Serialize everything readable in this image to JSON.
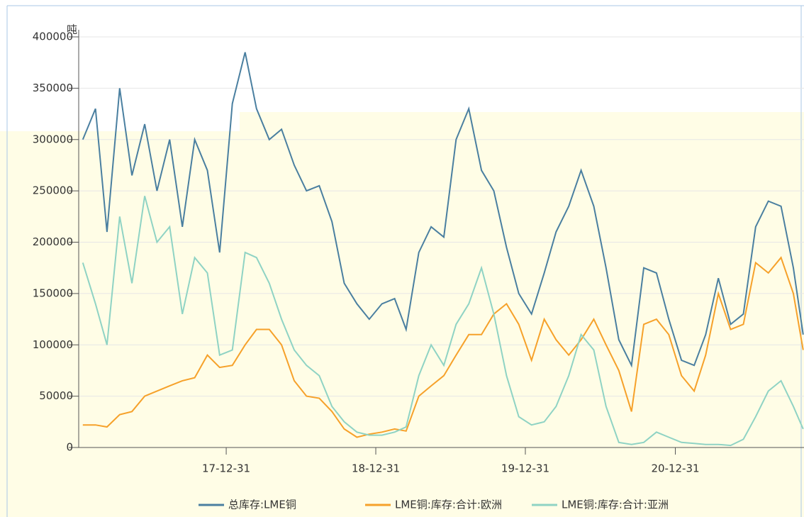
{
  "chart_data": {
    "type": "line",
    "y_unit": "吨",
    "x": [
      "2017-01-15",
      "2017-02-15",
      "2017-03-15",
      "2017-04-15",
      "2017-05-15",
      "2017-06-15",
      "2017-07-15",
      "2017-08-15",
      "2017-09-15",
      "2017-10-15",
      "2017-11-15",
      "2017-12-15",
      "2018-01-15",
      "2018-02-15",
      "2018-03-15",
      "2018-04-15",
      "2018-05-15",
      "2018-06-15",
      "2018-07-15",
      "2018-08-15",
      "2018-09-15",
      "2018-10-15",
      "2018-11-15",
      "2018-12-15",
      "2019-01-15",
      "2019-02-15",
      "2019-03-15",
      "2019-04-15",
      "2019-05-15",
      "2019-06-15",
      "2019-07-15",
      "2019-08-15",
      "2019-09-15",
      "2019-10-15",
      "2019-11-15",
      "2019-12-15",
      "2020-01-15",
      "2020-02-15",
      "2020-03-15",
      "2020-04-15",
      "2020-05-15",
      "2020-06-15",
      "2020-07-15",
      "2020-08-15",
      "2020-09-15",
      "2020-10-15",
      "2020-11-15",
      "2020-12-15",
      "2021-01-15",
      "2021-02-15",
      "2021-03-15",
      "2021-04-15",
      "2021-05-15",
      "2021-06-15",
      "2021-07-15",
      "2021-08-15",
      "2021-09-15",
      "2021-10-15",
      "2021-11-08"
    ],
    "series": [
      {
        "name": "总库存:LME铜",
        "color": "#4a7fa0",
        "values": [
          300000,
          330000,
          210000,
          350000,
          265000,
          315000,
          250000,
          300000,
          215000,
          300000,
          270000,
          190000,
          335000,
          385000,
          330000,
          300000,
          310000,
          275000,
          250000,
          255000,
          220000,
          160000,
          140000,
          125000,
          140000,
          145000,
          115000,
          190000,
          215000,
          205000,
          300000,
          330000,
          270000,
          250000,
          195000,
          150000,
          130000,
          170000,
          210000,
          235000,
          270000,
          235000,
          175000,
          105000,
          80000,
          175000,
          170000,
          125000,
          85000,
          80000,
          110000,
          165000,
          120000,
          130000,
          215000,
          240000,
          235000,
          175000,
          110000
        ]
      },
      {
        "name": "LME铜:库存:合计:欧洲",
        "color": "#f6a12a",
        "values": [
          22000,
          22000,
          20000,
          32000,
          35000,
          50000,
          55000,
          60000,
          65000,
          68000,
          90000,
          78000,
          80000,
          100000,
          115000,
          115000,
          100000,
          65000,
          50000,
          48000,
          35000,
          18000,
          10000,
          13000,
          15000,
          18000,
          16000,
          50000,
          60000,
          70000,
          90000,
          110000,
          110000,
          130000,
          140000,
          120000,
          85000,
          125000,
          105000,
          90000,
          105000,
          125000,
          100000,
          75000,
          35000,
          120000,
          125000,
          110000,
          70000,
          55000,
          90000,
          150000,
          115000,
          120000,
          180000,
          170000,
          185000,
          150000,
          95000
        ]
      },
      {
        "name": "LME铜:库存:合计:亚洲",
        "color": "#8fd3c4",
        "values": [
          180000,
          140000,
          100000,
          225000,
          160000,
          245000,
          200000,
          215000,
          130000,
          185000,
          170000,
          90000,
          95000,
          190000,
          185000,
          160000,
          125000,
          95000,
          80000,
          70000,
          40000,
          25000,
          15000,
          12000,
          12000,
          15000,
          20000,
          70000,
          100000,
          80000,
          120000,
          140000,
          175000,
          130000,
          70000,
          30000,
          22000,
          25000,
          40000,
          70000,
          110000,
          95000,
          40000,
          5000,
          3000,
          5000,
          15000,
          10000,
          5000,
          4000,
          3000,
          3000,
          2000,
          8000,
          30000,
          55000,
          65000,
          40000,
          18000
        ]
      }
    ],
    "xlim": [
      "2017-01-05",
      "2021-11-10"
    ],
    "xticks": [
      {
        "value": "2017-12-31",
        "label": "17-12-31"
      },
      {
        "value": "2018-12-31",
        "label": "18-12-31"
      },
      {
        "value": "2019-12-31",
        "label": "19-12-31"
      },
      {
        "value": "2020-12-31",
        "label": "20-12-31"
      }
    ],
    "ylim": [
      0,
      400000
    ],
    "yticks": [
      0,
      50000,
      100000,
      150000,
      200000,
      250000,
      300000,
      350000,
      400000
    ],
    "grid": true
  }
}
